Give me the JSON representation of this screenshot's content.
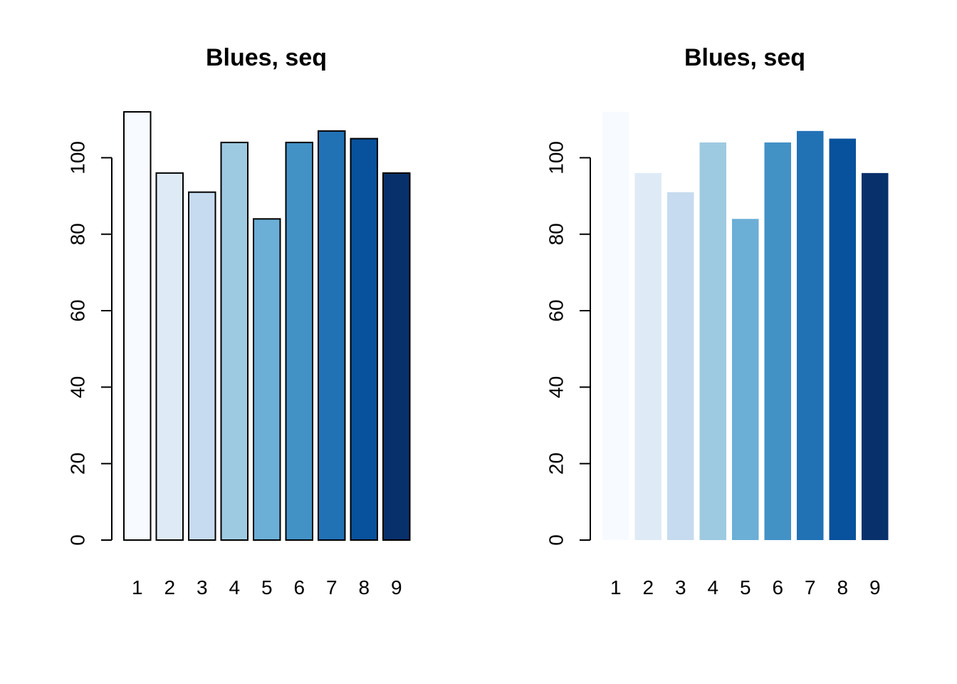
{
  "chart_data": [
    {
      "type": "bar",
      "title": "Blues, seq",
      "categories": [
        "1",
        "2",
        "3",
        "4",
        "5",
        "6",
        "7",
        "8",
        "9"
      ],
      "values": [
        112,
        96,
        91,
        104,
        84,
        104,
        107,
        105,
        96
      ],
      "colors": [
        "#F7FBFF",
        "#DEEBF7",
        "#C6DBEF",
        "#9ECAE1",
        "#6BAED6",
        "#4292C6",
        "#2171B5",
        "#08519C",
        "#08306B"
      ],
      "bar_border": true,
      "ylim": [
        0,
        112
      ],
      "yticks": [
        0,
        20,
        40,
        60,
        80,
        100
      ],
      "xlabel": "",
      "ylabel": "",
      "grid": false
    },
    {
      "type": "bar",
      "title": "Blues, seq",
      "categories": [
        "1",
        "2",
        "3",
        "4",
        "5",
        "6",
        "7",
        "8",
        "9"
      ],
      "values": [
        112,
        96,
        91,
        104,
        84,
        104,
        107,
        105,
        96
      ],
      "colors": [
        "#F7FBFF",
        "#DEEBF7",
        "#C6DBEF",
        "#9ECAE1",
        "#6BAED6",
        "#4292C6",
        "#2171B5",
        "#08519C",
        "#08306B"
      ],
      "bar_border": false,
      "ylim": [
        0,
        112
      ],
      "yticks": [
        0,
        20,
        40,
        60,
        80,
        100
      ],
      "xlabel": "",
      "ylabel": "",
      "grid": false
    }
  ]
}
